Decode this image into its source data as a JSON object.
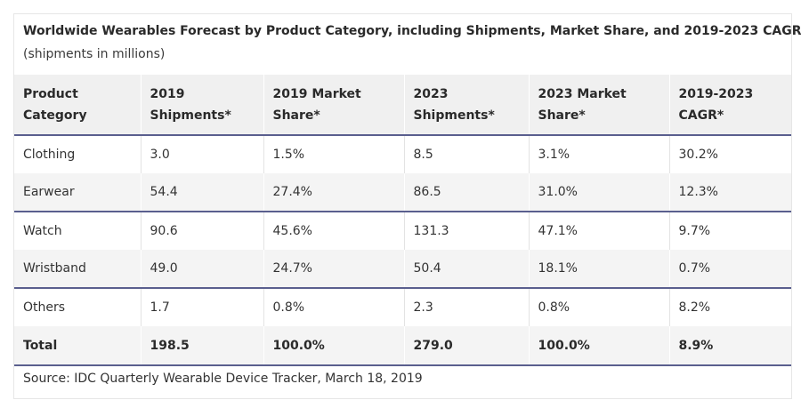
{
  "title": "Worldwide Wearables Forecast by Product Category, including Shipments, Market Share, and 2019-2023 CAGR",
  "subtitle": "(shipments in millions)",
  "headers": [
    [
      "Product",
      "Category"
    ],
    [
      "2019",
      "Shipments*"
    ],
    [
      "2019 Market",
      "Share*"
    ],
    [
      "2023",
      "Shipments*"
    ],
    [
      "2023 Market",
      "Share*"
    ],
    [
      "2019-2023",
      "CAGR*"
    ]
  ],
  "rows": [
    [
      "Clothing",
      "3.0",
      "1.5%",
      "8.5",
      "3.1%",
      "30.2%"
    ],
    [
      "Earwear",
      "54.4",
      "27.4%",
      "86.5",
      "31.0%",
      "12.3%"
    ],
    [
      "Watch",
      "90.6",
      "45.6%",
      "131.3",
      "47.1%",
      "9.7%"
    ],
    [
      "Wristband",
      "49.0",
      "24.7%",
      "50.4",
      "18.1%",
      "0.7%"
    ],
    [
      "Others",
      "1.7",
      "0.8%",
      "2.3",
      "0.8%",
      "8.2%"
    ],
    [
      "Total",
      "198.5",
      "100.0%",
      "279.0",
      "100.0%",
      "8.9%"
    ]
  ],
  "source": "Source: IDC Quarterly Wearable Device Tracker, March 18, 2019",
  "colors": {
    "rule": "#5a5f8e",
    "header_bg": "#f0f0f0",
    "shade_bg": "#f4f4f4"
  }
}
